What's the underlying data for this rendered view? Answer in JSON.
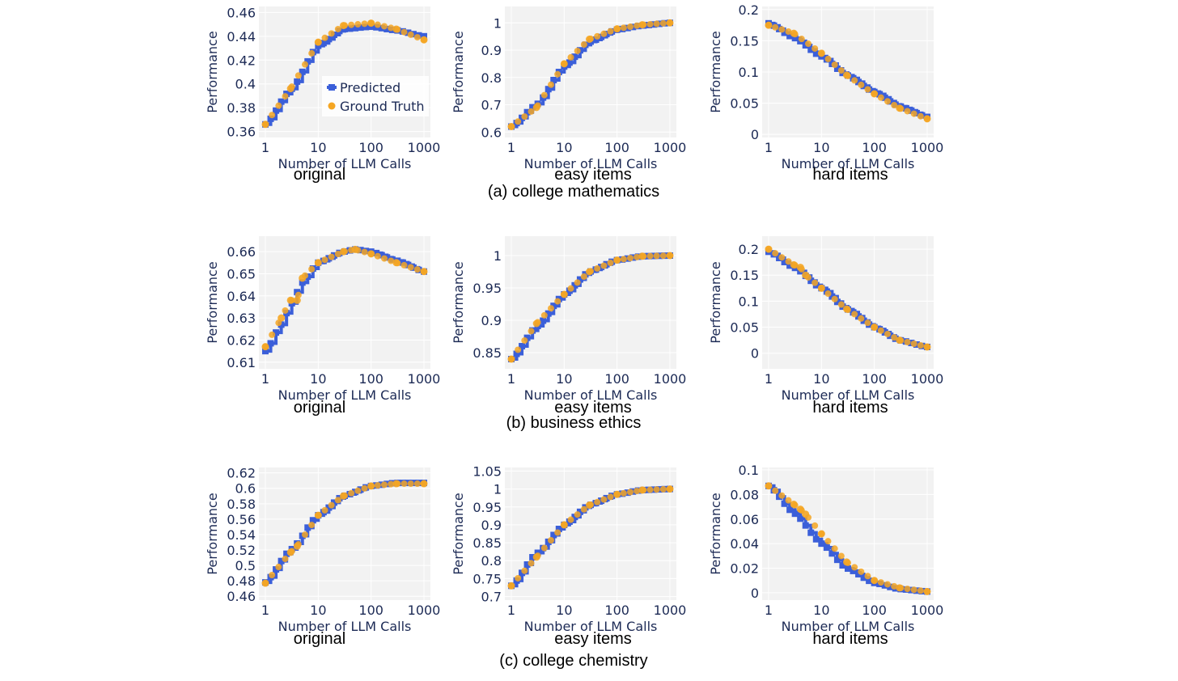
{
  "colors": {
    "predicted": "#3b5fd9",
    "ground_truth": "#f5a623",
    "plot_bg": "#f2f2f2",
    "grid": "#ffffff",
    "text": "#1c2a55"
  },
  "groups": [
    {
      "caption": "(a) college mathematics"
    },
    {
      "caption": "(b) business ethics"
    },
    {
      "caption": "(c) college chemistry"
    }
  ],
  "legend": {
    "predicted": "Predicted",
    "ground_truth": "Ground Truth"
  },
  "chart_data": [
    {
      "type": "line",
      "group": 0,
      "caption": "original",
      "xlabel": "Number of LLM Calls",
      "ylabel": "Performance",
      "xscale": "log",
      "xticks": [
        "1",
        "10",
        "100",
        "1000"
      ],
      "ylim": [
        0.355,
        0.465
      ],
      "yticks": [
        "0.36",
        "0.38",
        "0.4",
        "0.42",
        "0.44",
        "0.46"
      ],
      "legend": "top-right",
      "series": [
        {
          "name": "Predicted",
          "x": [
            1,
            3,
            10,
            30,
            100,
            300,
            1000
          ],
          "y": [
            0.366,
            0.395,
            0.432,
            0.446,
            0.448,
            0.445,
            0.44
          ]
        },
        {
          "name": "Ground Truth",
          "x": [
            1,
            3,
            10,
            30,
            100,
            300,
            1000
          ],
          "y": [
            0.366,
            0.396,
            0.435,
            0.449,
            0.451,
            0.446,
            0.437
          ]
        }
      ]
    },
    {
      "type": "line",
      "group": 0,
      "caption": "easy items",
      "xlabel": "Number of LLM Calls",
      "ylabel": "Performance",
      "xscale": "log",
      "xticks": [
        "1",
        "10",
        "100",
        "1000"
      ],
      "ylim": [
        0.58,
        1.06
      ],
      "yticks": [
        "0.6",
        "0.7",
        "0.8",
        "0.9",
        "1"
      ],
      "series": [
        {
          "name": "Predicted",
          "x": [
            1,
            3,
            10,
            30,
            100,
            300,
            1000
          ],
          "y": [
            0.62,
            0.7,
            0.84,
            0.93,
            0.975,
            0.99,
            1.0
          ]
        },
        {
          "name": "Ground Truth",
          "x": [
            1,
            3,
            10,
            30,
            100,
            300,
            1000
          ],
          "y": [
            0.62,
            0.69,
            0.85,
            0.94,
            0.978,
            0.993,
            1.0
          ]
        }
      ]
    },
    {
      "type": "line",
      "group": 0,
      "caption": "hard items",
      "xlabel": "Number of LLM Calls",
      "ylabel": "Performance",
      "xscale": "log",
      "xticks": [
        "1",
        "10",
        "100",
        "1000"
      ],
      "ylim": [
        -0.005,
        0.205
      ],
      "yticks": [
        "0",
        "0.05",
        "0.1",
        "0.15",
        "0.2"
      ],
      "series": [
        {
          "name": "Predicted",
          "x": [
            1,
            3,
            10,
            30,
            100,
            300,
            1000
          ],
          "y": [
            0.178,
            0.155,
            0.125,
            0.095,
            0.068,
            0.045,
            0.028
          ]
        },
        {
          "name": "Ground Truth",
          "x": [
            1,
            3,
            10,
            30,
            100,
            300,
            1000
          ],
          "y": [
            0.175,
            0.162,
            0.13,
            0.095,
            0.065,
            0.042,
            0.025
          ]
        }
      ]
    },
    {
      "type": "line",
      "group": 1,
      "caption": "original",
      "xlabel": "Number of LLM Calls",
      "ylabel": "Performance",
      "xscale": "log",
      "xticks": [
        "1",
        "10",
        "100",
        "1000"
      ],
      "ylim": [
        0.607,
        0.667
      ],
      "yticks": [
        "0.61",
        "0.62",
        "0.63",
        "0.64",
        "0.65",
        "0.66"
      ],
      "series": [
        {
          "name": "Predicted",
          "x": [
            1,
            2,
            3,
            5,
            10,
            30,
            50,
            100,
            300,
            1000
          ],
          "y": [
            0.615,
            0.627,
            0.636,
            0.646,
            0.655,
            0.66,
            0.661,
            0.66,
            0.656,
            0.651
          ]
        },
        {
          "name": "Ground Truth",
          "x": [
            1,
            2,
            3,
            4,
            5,
            10,
            30,
            50,
            100,
            300,
            1000
          ],
          "y": [
            0.617,
            0.63,
            0.638,
            0.638,
            0.648,
            0.655,
            0.66,
            0.661,
            0.659,
            0.655,
            0.651
          ]
        }
      ]
    },
    {
      "type": "line",
      "group": 1,
      "caption": "easy items",
      "xlabel": "Number of LLM Calls",
      "ylabel": "Performance",
      "xscale": "log",
      "xticks": [
        "1",
        "10",
        "100",
        "1000"
      ],
      "ylim": [
        0.825,
        1.03
      ],
      "yticks": [
        "0.85",
        "0.9",
        "0.95",
        "1"
      ],
      "series": [
        {
          "name": "Predicted",
          "x": [
            1,
            3,
            10,
            30,
            100,
            300,
            1000
          ],
          "y": [
            0.84,
            0.89,
            0.94,
            0.975,
            0.993,
            0.999,
            1.0
          ]
        },
        {
          "name": "Ground Truth",
          "x": [
            1,
            3,
            10,
            30,
            100,
            300,
            1000
          ],
          "y": [
            0.84,
            0.895,
            0.94,
            0.975,
            0.993,
            0.999,
            1.0
          ]
        }
      ]
    },
    {
      "type": "line",
      "group": 1,
      "caption": "hard items",
      "xlabel": "Number of LLM Calls",
      "ylabel": "Performance",
      "xscale": "log",
      "xticks": [
        "1",
        "10",
        "100",
        "1000"
      ],
      "ylim": [
        -0.03,
        0.225
      ],
      "yticks": [
        "0",
        "0.05",
        "0.1",
        "0.15",
        "0.2"
      ],
      "series": [
        {
          "name": "Predicted",
          "x": [
            1,
            3,
            10,
            30,
            100,
            300,
            1000
          ],
          "y": [
            0.195,
            0.165,
            0.125,
            0.085,
            0.05,
            0.025,
            0.012
          ]
        },
        {
          "name": "Ground Truth",
          "x": [
            1,
            3,
            4,
            5,
            10,
            30,
            100,
            300,
            1000
          ],
          "y": [
            0.2,
            0.17,
            0.165,
            0.15,
            0.125,
            0.085,
            0.05,
            0.025,
            0.012
          ]
        }
      ]
    },
    {
      "type": "line",
      "group": 2,
      "caption": "original",
      "xlabel": "Number of LLM Calls",
      "ylabel": "Performance",
      "xscale": "log",
      "xticks": [
        "1",
        "10",
        "100",
        "1000"
      ],
      "ylim": [
        0.455,
        0.627
      ],
      "yticks": [
        "0.46",
        "0.48",
        "0.5",
        "0.52",
        "0.54",
        "0.56",
        "0.58",
        "0.6",
        "0.62"
      ],
      "series": [
        {
          "name": "Predicted",
          "x": [
            1,
            3,
            10,
            30,
            100,
            300,
            1000
          ],
          "y": [
            0.478,
            0.52,
            0.565,
            0.59,
            0.603,
            0.607,
            0.607
          ]
        },
        {
          "name": "Ground Truth",
          "x": [
            1,
            3,
            4,
            10,
            30,
            100,
            300,
            1000
          ],
          "y": [
            0.477,
            0.517,
            0.525,
            0.565,
            0.59,
            0.603,
            0.606,
            0.606
          ]
        }
      ]
    },
    {
      "type": "line",
      "group": 2,
      "caption": "easy items",
      "xlabel": "Number of LLM Calls",
      "ylabel": "Performance",
      "xscale": "log",
      "xticks": [
        "1",
        "10",
        "100",
        "1000"
      ],
      "ylim": [
        0.69,
        1.06
      ],
      "yticks": [
        "0.7",
        "0.75",
        "0.8",
        "0.85",
        "0.9",
        "0.95",
        "1",
        "1.05"
      ],
      "series": [
        {
          "name": "Predicted",
          "x": [
            1,
            3,
            10,
            30,
            100,
            300,
            1000
          ],
          "y": [
            0.73,
            0.82,
            0.9,
            0.955,
            0.985,
            0.997,
            1.0
          ]
        },
        {
          "name": "Ground Truth",
          "x": [
            1,
            3,
            10,
            30,
            100,
            300,
            1000
          ],
          "y": [
            0.73,
            0.81,
            0.9,
            0.955,
            0.985,
            0.997,
            1.0
          ]
        }
      ]
    },
    {
      "type": "line",
      "group": 2,
      "caption": "hard items",
      "xlabel": "Number of LLM Calls",
      "ylabel": "Performance",
      "xscale": "log",
      "xticks": [
        "1",
        "10",
        "100",
        "1000"
      ],
      "ylim": [
        -0.006,
        0.102
      ],
      "yticks": [
        "0",
        "0.02",
        "0.04",
        "0.06",
        "0.08",
        "0.1"
      ],
      "series": [
        {
          "name": "Predicted",
          "x": [
            1,
            3,
            10,
            30,
            100,
            300,
            1000
          ],
          "y": [
            0.087,
            0.065,
            0.04,
            0.02,
            0.008,
            0.003,
            0.001
          ]
        },
        {
          "name": "Ground Truth",
          "x": [
            1,
            3,
            4,
            5,
            10,
            30,
            100,
            300,
            1000
          ],
          "y": [
            0.087,
            0.072,
            0.068,
            0.064,
            0.048,
            0.025,
            0.01,
            0.004,
            0.001
          ]
        }
      ]
    }
  ]
}
